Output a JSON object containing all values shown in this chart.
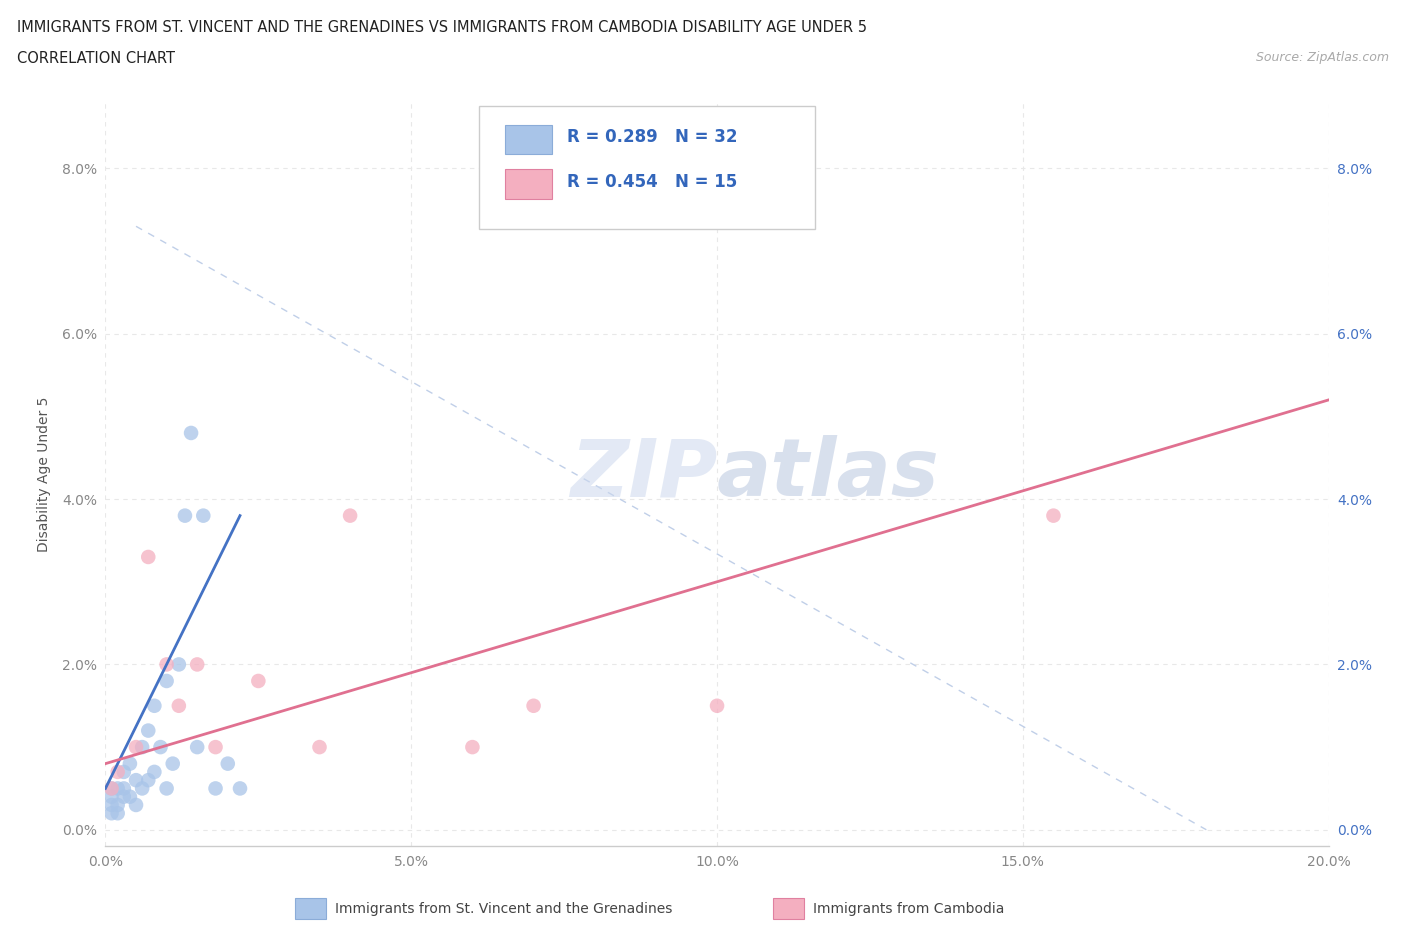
{
  "title_line1": "IMMIGRANTS FROM ST. VINCENT AND THE GRENADINES VS IMMIGRANTS FROM CAMBODIA DISABILITY AGE UNDER 5",
  "title_line2": "CORRELATION CHART",
  "source_text": "Source: ZipAtlas.com",
  "ylabel": "Disability Age Under 5",
  "xlim": [
    0.0,
    0.2
  ],
  "ylim": [
    -0.002,
    0.088
  ],
  "xticks": [
    0.0,
    0.05,
    0.1,
    0.15,
    0.2
  ],
  "xtick_labels": [
    "0.0%",
    "5.0%",
    "10.0%",
    "15.0%",
    "20.0%"
  ],
  "yticks": [
    0.0,
    0.02,
    0.04,
    0.06,
    0.08
  ],
  "ytick_labels": [
    "0.0%",
    "2.0%",
    "4.0%",
    "6.0%",
    "8.0%"
  ],
  "blue_R": 0.289,
  "blue_N": 32,
  "pink_R": 0.454,
  "pink_N": 15,
  "blue_color": "#a8c4e8",
  "pink_color": "#f4afc0",
  "blue_line_color": "#4472c4",
  "pink_line_color": "#e07090",
  "dashed_line_color": "#c0cfe8",
  "background_color": "#ffffff",
  "grid_color": "#e8e8e8",
  "blue_scatter_x": [
    0.001,
    0.001,
    0.001,
    0.001,
    0.002,
    0.002,
    0.002,
    0.003,
    0.003,
    0.003,
    0.004,
    0.004,
    0.005,
    0.005,
    0.006,
    0.006,
    0.007,
    0.007,
    0.008,
    0.008,
    0.009,
    0.01,
    0.01,
    0.011,
    0.012,
    0.013,
    0.014,
    0.015,
    0.016,
    0.018,
    0.02,
    0.022
  ],
  "blue_scatter_y": [
    0.002,
    0.003,
    0.004,
    0.005,
    0.002,
    0.003,
    0.005,
    0.004,
    0.005,
    0.007,
    0.004,
    0.008,
    0.003,
    0.006,
    0.005,
    0.01,
    0.006,
    0.012,
    0.007,
    0.015,
    0.01,
    0.005,
    0.018,
    0.008,
    0.02,
    0.038,
    0.048,
    0.01,
    0.038,
    0.005,
    0.008,
    0.005
  ],
  "pink_scatter_x": [
    0.001,
    0.002,
    0.005,
    0.007,
    0.01,
    0.012,
    0.015,
    0.018,
    0.025,
    0.035,
    0.04,
    0.06,
    0.07,
    0.1,
    0.155
  ],
  "pink_scatter_y": [
    0.005,
    0.007,
    0.01,
    0.033,
    0.02,
    0.015,
    0.02,
    0.01,
    0.018,
    0.01,
    0.038,
    0.01,
    0.015,
    0.015,
    0.038
  ],
  "blue_line_x": [
    0.0,
    0.022
  ],
  "blue_line_y": [
    0.005,
    0.038
  ],
  "pink_line_x": [
    0.0,
    0.2
  ],
  "pink_line_y": [
    0.008,
    0.052
  ],
  "dash_line_x": [
    0.005,
    0.18
  ],
  "dash_line_y": [
    0.073,
    0.0
  ]
}
